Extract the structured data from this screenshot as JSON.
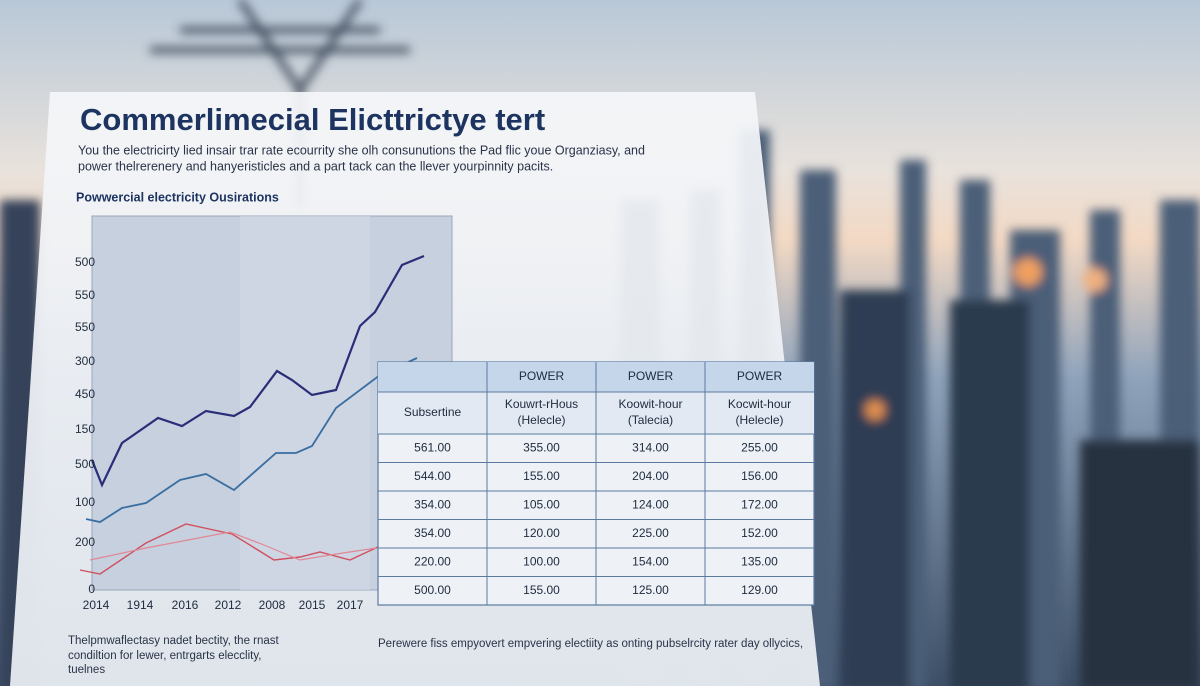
{
  "header": {
    "title": "Commerlimecial Elicttrictye tert",
    "intro": [
      "You the electricirty lied insair trar rate ecourrity she olh consunutions the Pad flic youe Organziasy, and",
      "power thelrerenery and hanyeristicles and a part tack can the llever yourpinnity pacits."
    ]
  },
  "chart": {
    "title": "Powwercial electricity Ousirations",
    "y_labels": [
      "500",
      "550",
      "550",
      "300",
      "450",
      "150",
      "500",
      "100",
      "200",
      "0"
    ],
    "x_labels": [
      "2014",
      "1914",
      "2016",
      "2012",
      "2008",
      "2015",
      "2017"
    ]
  },
  "table": {
    "group_header": [
      "POWER",
      "POWER",
      "POWER"
    ],
    "columns": [
      [
        "Subsertine"
      ],
      [
        "Kouwrt-rHous",
        "(Helecle)"
      ],
      [
        "Koowit-hour",
        "(Talecia)"
      ],
      [
        "Kocwit-hour",
        "(Helecle)"
      ]
    ],
    "rows": [
      [
        "561.00",
        "355.00",
        "314.00",
        "255.00"
      ],
      [
        "544.00",
        "155.00",
        "204.00",
        "156.00"
      ],
      [
        "354.00",
        "105.00",
        "124.00",
        "172.00"
      ],
      [
        "354.00",
        "120.00",
        "225.00",
        "152.00"
      ],
      [
        "220.00",
        "100.00",
        "154.00",
        "135.00"
      ],
      [
        "500.00",
        "155.00",
        "125.00",
        "129.00"
      ]
    ]
  },
  "footer": {
    "left": [
      "Thelpmwaflectasy nadet bectity, the rnast",
      "condiltion for lewer, entrgarts elecclity,",
      "tuelnes"
    ],
    "right": "Perewere fiss empyovert empvering electiity as onting pubselrcity rater day ollycics,"
  }
}
